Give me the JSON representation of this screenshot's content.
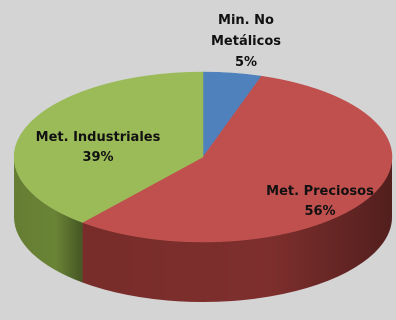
{
  "chart_data": {
    "type": "pie",
    "style": "3d",
    "slices": [
      {
        "label_lines": [
          "Min. No",
          "Metálicos"
        ],
        "percent_text": "5%",
        "value": 5,
        "color": "#4f81bd",
        "side_color": "#33557f"
      },
      {
        "label_lines": [
          "Met. Preciosos"
        ],
        "percent_text": "56%",
        "value": 56,
        "color": "#c0504d",
        "side_color": "#7e2f2d"
      },
      {
        "label_lines": [
          "Met. Industriales"
        ],
        "percent_text": "39%",
        "value": 39,
        "color": "#9bbb59",
        "side_color": "#6a8436"
      }
    ],
    "background_color": "#d4d4d4",
    "legend": "none"
  }
}
